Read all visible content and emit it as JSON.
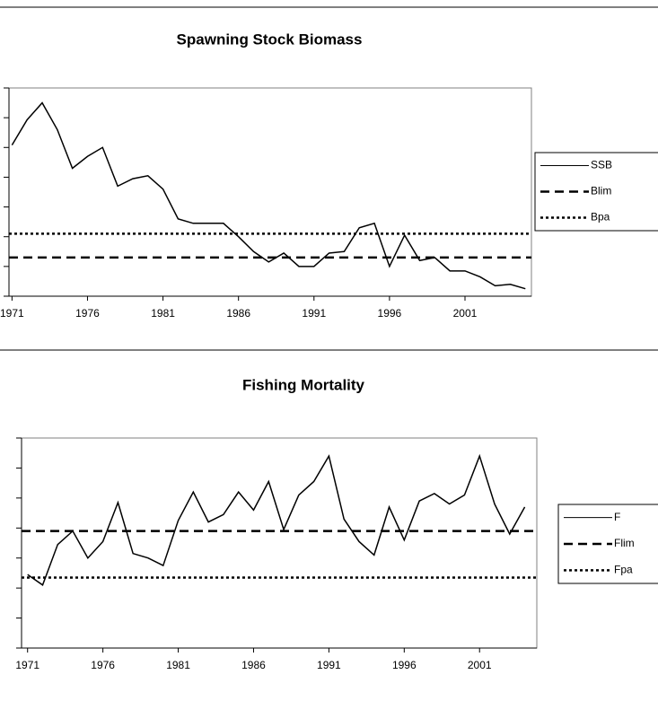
{
  "chart_data": [
    {
      "type": "line",
      "title": "Spawning Stock Biomass",
      "x": [
        1971,
        1972,
        1973,
        1974,
        1975,
        1976,
        1977,
        1978,
        1979,
        1980,
        1981,
        1982,
        1983,
        1984,
        1985,
        1986,
        1987,
        1988,
        1989,
        1990,
        1991,
        1992,
        1993,
        1994,
        1995,
        1996,
        1997,
        1998,
        1999,
        2000,
        2001,
        2002,
        2003,
        2004,
        2005
      ],
      "series": [
        {
          "name": "SSB",
          "color": "#000000",
          "values": [
            5.08,
            5.93,
            6.5,
            5.6,
            4.3,
            4.7,
            5.0,
            3.7,
            3.95,
            4.05,
            3.6,
            2.6,
            2.45,
            2.45,
            2.45,
            2.0,
            1.5,
            1.15,
            1.45,
            1.0,
            1.0,
            1.45,
            1.5,
            2.3,
            2.45,
            1.0,
            2.05,
            1.2,
            1.3,
            0.85,
            0.85,
            0.65,
            0.35,
            0.4,
            0.25
          ]
        }
      ],
      "reference_lines": [
        {
          "name": "Blim",
          "value": 1.3,
          "dash": "dashed",
          "color": "#000000"
        },
        {
          "name": "Bpa",
          "value": 2.1,
          "dash": "dotted",
          "color": "#000000"
        }
      ],
      "xlim": [
        1970.8,
        2005.4
      ],
      "xticks": [
        1971,
        1976,
        1981,
        1986,
        1991,
        1996,
        2001
      ],
      "ylim": [
        0,
        7
      ],
      "yticks": [
        0,
        1,
        2,
        3,
        4,
        5,
        6,
        7
      ]
    },
    {
      "type": "line",
      "title": "Fishing Mortality",
      "x": [
        1971,
        1972,
        1973,
        1974,
        1975,
        1976,
        1977,
        1978,
        1979,
        1980,
        1981,
        1982,
        1983,
        1984,
        1985,
        1986,
        1987,
        1988,
        1989,
        1990,
        1991,
        1992,
        1993,
        1994,
        1995,
        1996,
        1997,
        1998,
        1999,
        2000,
        2001,
        2002,
        2003,
        2004
      ],
      "series": [
        {
          "name": "F",
          "color": "#000000",
          "values": [
            2.45,
            2.1,
            3.45,
            3.9,
            3.0,
            3.55,
            4.85,
            3.15,
            3.0,
            2.75,
            4.25,
            5.2,
            4.2,
            4.45,
            5.2,
            4.6,
            5.55,
            3.95,
            5.1,
            5.55,
            6.4,
            4.3,
            3.55,
            3.1,
            4.7,
            3.6,
            4.9,
            5.15,
            4.8,
            5.1,
            6.4,
            4.8,
            3.8,
            4.7
          ]
        }
      ],
      "reference_lines": [
        {
          "name": "Flim",
          "value": 3.9,
          "dash": "dashed",
          "color": "#000000"
        },
        {
          "name": "Fpa",
          "value": 2.35,
          "dash": "dotted",
          "color": "#000000"
        }
      ],
      "xlim": [
        1970.6,
        2004.8
      ],
      "xticks": [
        1971,
        1976,
        1981,
        1986,
        1991,
        1996,
        2001
      ],
      "ylim": [
        0,
        7
      ],
      "yticks": [
        0,
        1,
        2,
        3,
        4,
        5,
        6,
        7
      ]
    }
  ]
}
